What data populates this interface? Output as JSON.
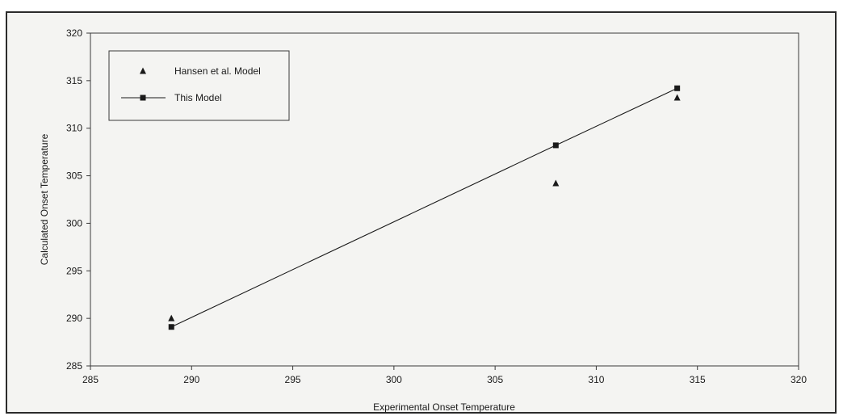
{
  "chart_data": {
    "type": "scatter",
    "title": "",
    "xlabel": "Experimental Onset Temperature",
    "ylabel": "Calculated Onset Temperature",
    "xlim": [
      285,
      320
    ],
    "ylim": [
      285,
      320
    ],
    "xticks": [
      285,
      290,
      295,
      300,
      305,
      310,
      315,
      320
    ],
    "yticks": [
      285,
      290,
      295,
      300,
      305,
      310,
      315,
      320
    ],
    "grid": false,
    "legend_position": "top-left",
    "series": [
      {
        "name": "Hansen et al. Model",
        "marker": "triangle",
        "line": false,
        "color": "#1a1a1a",
        "points": [
          {
            "x": 289,
            "y": 290
          },
          {
            "x": 308,
            "y": 304.2
          },
          {
            "x": 314,
            "y": 313.2
          }
        ]
      },
      {
        "name": "This Model",
        "marker": "square",
        "line": true,
        "color": "#1a1a1a",
        "points": [
          {
            "x": 289,
            "y": 289.1
          },
          {
            "x": 308,
            "y": 308.2
          },
          {
            "x": 314,
            "y": 314.2
          }
        ]
      }
    ]
  }
}
